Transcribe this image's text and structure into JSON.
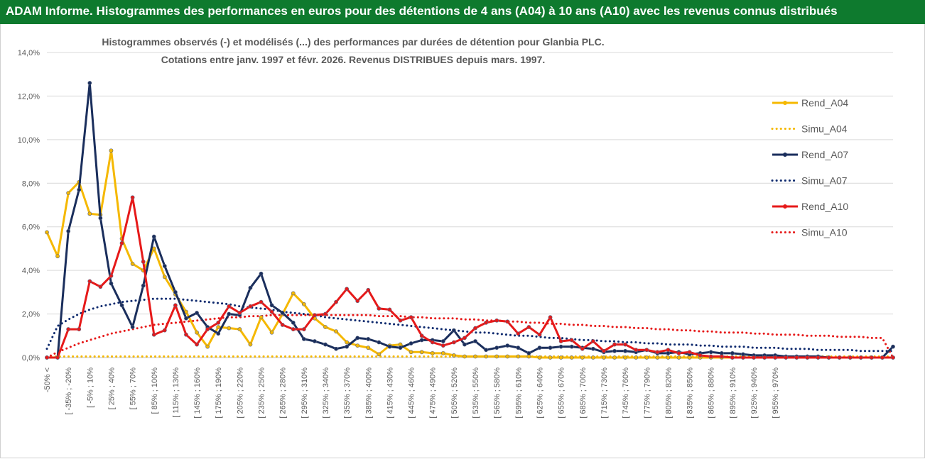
{
  "banner": {
    "title": "ADAM Informe. Histogrammes des performances en euros pour des détentions de 4 ans (A04) à 10 ans (A10) avec les revenus connus distribués"
  },
  "colors": {
    "banner_bg": "#0e7a2e",
    "rend_a04": "#f5b800",
    "simu_a04": "#f5b800",
    "rend_a07": "#1a2e5c",
    "simu_a07": "#0e2a6e",
    "rend_a10": "#e61919",
    "simu_a10": "#e61919",
    "grid": "#d9d9d9",
    "text": "#595959"
  },
  "chart_data": {
    "type": "line",
    "title_lines": [
      "Histogrammes observés (-) et modélisés (...) des performances par durées de détention pour Glanbia PLC.",
      "Cotations entre janv. 1997 et févr. 2026. Revenus DISTRIBUES depuis mars. 1997."
    ],
    "ylim": [
      0,
      14
    ],
    "yticks": [
      "0,0%",
      "2,0%",
      "4,0%",
      "6,0%",
      "8,0%",
      "10,0%",
      "12,0%",
      "14,0%"
    ],
    "grid": true,
    "legend_position": "right",
    "n_points": 80,
    "x_tick_labels": [
      "-50% <",
      "[ -35% ; -20%",
      "[ -5% ; 10%",
      "[ 25% ; 40%",
      "[ 55% ; 70%",
      "[ 85% ; 100%",
      "[ 115% ; 130%",
      "[ 145% ; 160%",
      "[ 175% ; 190%",
      "[ 205% ; 220%",
      "[ 235% ; 250%",
      "[ 265% ; 280%",
      "[ 295% ; 310%",
      "[ 325% ; 340%",
      "[ 355% ; 370%",
      "[ 385% ; 400%",
      "[ 415% ; 430%",
      "[ 445% ; 460%",
      "[ 475% ; 490%",
      "[ 505% ; 520%",
      "[ 535% ; 550%",
      "[ 565% ; 580%",
      "[ 595% ; 610%",
      "[ 625% ; 640%",
      "[ 655% ; 670%",
      "[ 685% ; 700%",
      "[ 715% ; 730%",
      "[ 745% ; 760%",
      "[ 775% ; 790%",
      "[ 805% ; 820%",
      "[ 835% ; 850%",
      "[ 865% ; 880%",
      "[ 895% ; 910%",
      "[ 925% ; 940%",
      "[ 955% ; 970%"
    ],
    "x_tick_step": 2,
    "series": [
      {
        "name": "Rend_A04",
        "style": "solid",
        "marker": true,
        "values": [
          5.75,
          4.65,
          7.55,
          8.05,
          6.6,
          6.55,
          9.5,
          5.45,
          4.3,
          4.0,
          5.0,
          3.7,
          2.9,
          2.1,
          1.15,
          0.5,
          1.4,
          1.35,
          1.3,
          0.6,
          1.85,
          1.15,
          2.0,
          2.95,
          2.45,
          1.8,
          1.4,
          1.2,
          0.7,
          0.55,
          0.45,
          0.15,
          0.55,
          0.6,
          0.25,
          0.25,
          0.2,
          0.2,
          0.1,
          0.05,
          0.05,
          0.05,
          0.05,
          0.05,
          0.05,
          0.05,
          0.0,
          0.0,
          0.0,
          0.0,
          0.0,
          0.0,
          0.0,
          0.0,
          0.0,
          0.0,
          0.0,
          0.0,
          0.0,
          0.0,
          0.0,
          0.0,
          0.0,
          0.0,
          0.0,
          0.0,
          0.0,
          0.0,
          0.0,
          0.0,
          0.0,
          0.0,
          0.0,
          0.0,
          0.0,
          0.0,
          0.0,
          0.0,
          0.0,
          0.0
        ]
      },
      {
        "name": "Simu_A04",
        "style": "dotted",
        "marker": false,
        "values": [
          0.05,
          0.05,
          0.05,
          0.05,
          0.05,
          0.05,
          0.05,
          0.05,
          0.05,
          0.05,
          0.05,
          0.05,
          0.05,
          0.05,
          0.05,
          0.05,
          0.05,
          0.05,
          0.05,
          0.05,
          0.05,
          0.05,
          0.05,
          0.05,
          0.05,
          0.05,
          0.05,
          0.05,
          0.05,
          0.05,
          0.05,
          0.05,
          0.05,
          0.05,
          0.05,
          0.05,
          0.05,
          0.05,
          0.05,
          0.05,
          0.05,
          0.05,
          0.05,
          0.05,
          0.05,
          0.05,
          0.05,
          0.05,
          0.05,
          0.05,
          0.05,
          0.05,
          0.05,
          0.05,
          0.05,
          0.05,
          0.05,
          0.05,
          0.05,
          0.05,
          0.05,
          0.05,
          0.05,
          0.05,
          0.05,
          0.05,
          0.05,
          0.05,
          0.05,
          0.05,
          0.05,
          0.05,
          0.05,
          0.05,
          0.05,
          0.05,
          0.05,
          0.05,
          0.05,
          0.05
        ]
      },
      {
        "name": "Rend_A07",
        "style": "solid",
        "marker": true,
        "values": [
          0.0,
          0.0,
          5.8,
          7.7,
          12.6,
          6.4,
          3.4,
          2.4,
          1.4,
          3.3,
          5.55,
          4.2,
          3.0,
          1.8,
          2.05,
          1.4,
          1.1,
          2.0,
          1.95,
          3.2,
          3.85,
          2.4,
          2.05,
          1.6,
          0.85,
          0.75,
          0.6,
          0.4,
          0.5,
          0.9,
          0.85,
          0.7,
          0.5,
          0.45,
          0.65,
          0.8,
          0.8,
          0.75,
          1.25,
          0.6,
          0.75,
          0.35,
          0.45,
          0.55,
          0.45,
          0.2,
          0.45,
          0.45,
          0.5,
          0.5,
          0.45,
          0.4,
          0.25,
          0.3,
          0.3,
          0.25,
          0.35,
          0.2,
          0.2,
          0.25,
          0.15,
          0.2,
          0.25,
          0.2,
          0.2,
          0.15,
          0.1,
          0.1,
          0.1,
          0.05,
          0.05,
          0.05,
          0.05,
          0.0,
          0.0,
          0.0,
          0.0,
          0.0,
          0.0,
          0.5
        ]
      },
      {
        "name": "Simu_A07",
        "style": "dotted",
        "marker": false,
        "values": [
          0.4,
          1.45,
          1.75,
          2.0,
          2.2,
          2.35,
          2.45,
          2.55,
          2.6,
          2.65,
          2.7,
          2.7,
          2.7,
          2.65,
          2.6,
          2.55,
          2.5,
          2.45,
          2.35,
          2.3,
          2.25,
          2.2,
          2.1,
          2.05,
          2.0,
          1.95,
          1.85,
          1.8,
          1.75,
          1.7,
          1.65,
          1.6,
          1.55,
          1.5,
          1.45,
          1.4,
          1.35,
          1.3,
          1.25,
          1.2,
          1.15,
          1.15,
          1.1,
          1.05,
          1.0,
          1.0,
          0.95,
          0.9,
          0.9,
          0.85,
          0.8,
          0.8,
          0.75,
          0.75,
          0.7,
          0.7,
          0.65,
          0.65,
          0.6,
          0.6,
          0.6,
          0.55,
          0.55,
          0.5,
          0.5,
          0.5,
          0.45,
          0.45,
          0.45,
          0.4,
          0.4,
          0.4,
          0.35,
          0.35,
          0.35,
          0.35,
          0.3,
          0.3,
          0.3,
          0.3
        ]
      },
      {
        "name": "Rend_A10",
        "style": "solid",
        "marker": true,
        "values": [
          0.0,
          0.0,
          1.3,
          1.3,
          3.5,
          3.25,
          3.75,
          5.25,
          7.35,
          4.4,
          1.05,
          1.25,
          2.4,
          1.05,
          0.6,
          1.3,
          1.6,
          2.35,
          2.05,
          2.35,
          2.55,
          2.1,
          1.5,
          1.3,
          1.3,
          1.95,
          2.0,
          2.55,
          3.15,
          2.6,
          3.1,
          2.25,
          2.2,
          1.7,
          1.85,
          1.0,
          0.7,
          0.55,
          0.7,
          0.9,
          1.35,
          1.6,
          1.7,
          1.65,
          1.1,
          1.4,
          1.05,
          1.85,
          0.75,
          0.8,
          0.4,
          0.75,
          0.3,
          0.6,
          0.6,
          0.35,
          0.35,
          0.25,
          0.35,
          0.2,
          0.25,
          0.1,
          0.05,
          0.05,
          0.0,
          0.0,
          0.0,
          0.0,
          0.0,
          0.0,
          0.0,
          0.0,
          0.0,
          0.0,
          0.0,
          0.0,
          0.0,
          0.0,
          0.0,
          0.0
        ]
      },
      {
        "name": "Simu_A10",
        "style": "dotted",
        "marker": false,
        "values": [
          0.0,
          0.25,
          0.45,
          0.65,
          0.8,
          0.95,
          1.1,
          1.2,
          1.3,
          1.4,
          1.5,
          1.55,
          1.6,
          1.65,
          1.7,
          1.75,
          1.8,
          1.85,
          1.85,
          1.9,
          1.9,
          1.95,
          1.95,
          1.95,
          1.95,
          1.95,
          1.95,
          1.95,
          1.95,
          1.95,
          1.95,
          1.9,
          1.9,
          1.9,
          1.85,
          1.85,
          1.8,
          1.8,
          1.8,
          1.75,
          1.75,
          1.7,
          1.7,
          1.65,
          1.65,
          1.6,
          1.6,
          1.55,
          1.55,
          1.5,
          1.5,
          1.45,
          1.45,
          1.4,
          1.4,
          1.35,
          1.35,
          1.3,
          1.3,
          1.25,
          1.25,
          1.2,
          1.2,
          1.15,
          1.15,
          1.15,
          1.1,
          1.1,
          1.05,
          1.05,
          1.05,
          1.0,
          1.0,
          1.0,
          0.95,
          0.95,
          0.95,
          0.9,
          0.9,
          0.0
        ]
      }
    ]
  }
}
